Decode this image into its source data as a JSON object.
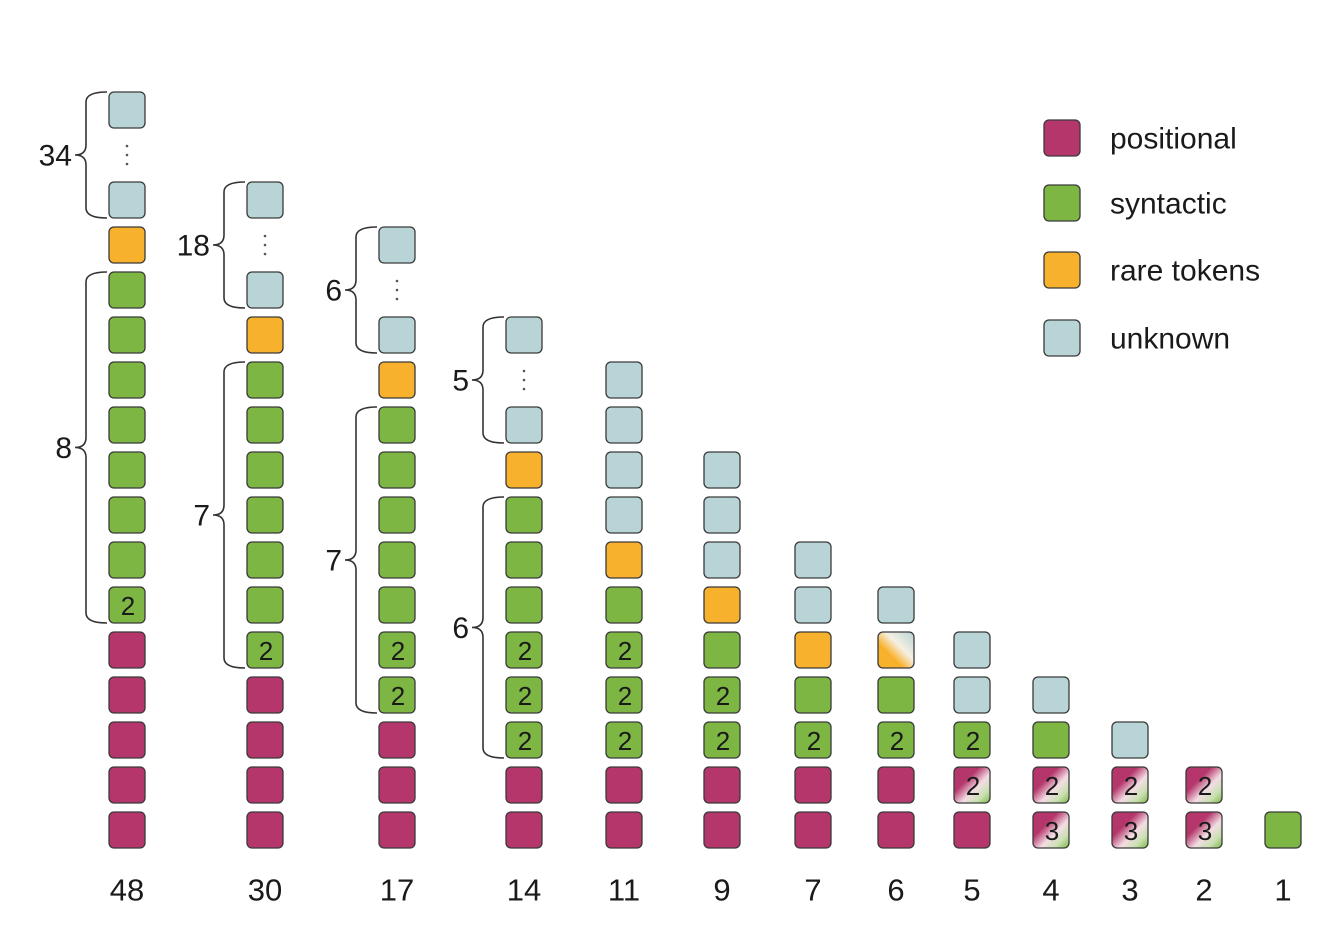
{
  "colors": {
    "positional": "#b5366b",
    "syntactic": "#7db643",
    "rare": "#f8b12c",
    "unknown": "#b8d4d6",
    "outline": "#3a3a3a"
  },
  "legend": [
    {
      "type": "positional",
      "label": "positional"
    },
    {
      "type": "syntactic",
      "label": "syntactic"
    },
    {
      "type": "rare",
      "label": "rare tokens"
    },
    {
      "type": "unknown",
      "label": "unknown"
    }
  ],
  "columns": [
    {
      "label": "48",
      "squares": [
        "P",
        "P",
        "P",
        "P",
        "P",
        "S:2",
        "S",
        "S",
        "S",
        "S",
        "S",
        "S",
        "S",
        "R",
        "U",
        "dots",
        "U"
      ],
      "braces": [
        {
          "label": "8",
          "from": 5,
          "to": 12
        },
        {
          "label": "34",
          "from": 14,
          "to": 16
        }
      ]
    },
    {
      "label": "30",
      "squares": [
        "P",
        "P",
        "P",
        "P",
        "S:2",
        "S",
        "S",
        "S",
        "S",
        "S",
        "S",
        "R",
        "U",
        "dots",
        "U"
      ],
      "braces": [
        {
          "label": "7",
          "from": 4,
          "to": 10
        },
        {
          "label": "18",
          "from": 12,
          "to": 14
        }
      ]
    },
    {
      "label": "17",
      "squares": [
        "P",
        "P",
        "P",
        "S:2",
        "S:2",
        "S",
        "S",
        "S",
        "S",
        "S",
        "R",
        "U",
        "dots",
        "U"
      ],
      "braces": [
        {
          "label": "7",
          "from": 3,
          "to": 9
        },
        {
          "label": "6",
          "from": 11,
          "to": 13
        }
      ]
    },
    {
      "label": "14",
      "squares": [
        "P",
        "P",
        "S:2",
        "S:2",
        "S:2",
        "S",
        "S",
        "S",
        "R",
        "U",
        "dots",
        "U"
      ],
      "braces": [
        {
          "label": "6",
          "from": 2,
          "to": 7
        },
        {
          "label": "5",
          "from": 9,
          "to": 11
        }
      ]
    },
    {
      "label": "11",
      "squares": [
        "P",
        "P",
        "S:2",
        "S:2",
        "S:2",
        "S",
        "R",
        "U",
        "U",
        "U",
        "U"
      ],
      "braces": []
    },
    {
      "label": "9",
      "squares": [
        "P",
        "P",
        "S:2",
        "S:2",
        "S",
        "R",
        "U",
        "U",
        "U"
      ],
      "braces": []
    },
    {
      "label": "7",
      "squares": [
        "P",
        "P",
        "S:2",
        "S",
        "R",
        "U",
        "U"
      ],
      "braces": []
    },
    {
      "label": "6",
      "squares": [
        "P",
        "P",
        "S:2",
        "S",
        "RU",
        "U"
      ],
      "braces": []
    },
    {
      "label": "5",
      "squares": [
        "P",
        "PS:2",
        "S:2",
        "U",
        "U"
      ],
      "braces": []
    },
    {
      "label": "4",
      "squares": [
        "PS:3",
        "PS:2",
        "S",
        "U"
      ],
      "braces": []
    },
    {
      "label": "3",
      "squares": [
        "PS:3",
        "PS:2",
        "U"
      ],
      "braces": []
    },
    {
      "label": "2",
      "squares": [
        "PS:3",
        "PS:2"
      ],
      "braces": []
    },
    {
      "label": "1",
      "squares": [
        "S"
      ],
      "braces": []
    }
  ]
}
